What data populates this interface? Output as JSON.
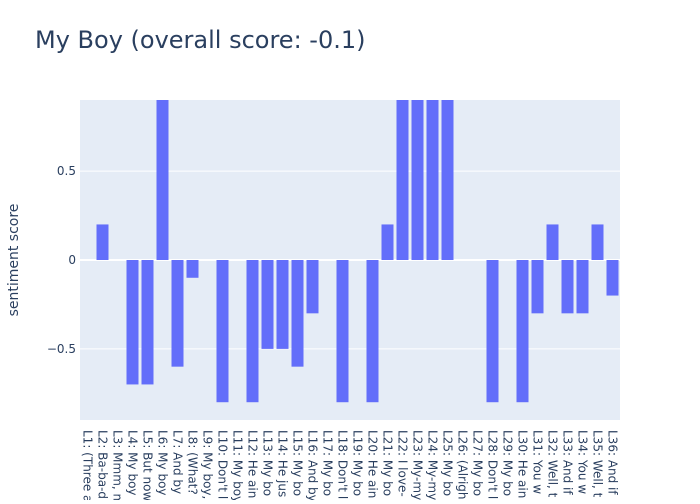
{
  "chart_data": {
    "type": "bar",
    "title": "My Boy (overall score: -0.1)",
    "xlabel": "",
    "ylabel": "sentiment score",
    "ylim": [
      -0.9,
      0.9
    ],
    "yticks": [
      {
        "value": 0.5,
        "label": "0.5"
      },
      {
        "value": 0,
        "label": "0"
      },
      {
        "value": -0.5,
        "label": "−0.5"
      }
    ],
    "grid": true,
    "bar_color": "#636efa",
    "plot_background": "#e5ecf6",
    "categories": [
      "L1: (Three a",
      "L2: Ba-ba-d",
      "L3: Mmm, m",
      "L4: My boy",
      "L5: But now",
      "L6: My boy",
      "L7: And by",
      "L8: (What?",
      "L9: My boy,",
      "L10: Don't l",
      "L11: My boy",
      "L12: He ain",
      "L13: My bo",
      "L14: He jus",
      "L15: My bo",
      "L16: And by",
      "L17: My bo",
      "L18: Don't l",
      "L19: My bo",
      "L20: He ain",
      "L21: My bo",
      "L22: I love-",
      "L23: My-my",
      "L24: My-my",
      "L25: My bo",
      "L26: (Alrigh",
      "L27: My bo",
      "L28: Don't l",
      "L29: My bo",
      "L30: He ain",
      "L31: You w",
      "L32: Well, t",
      "L33: And if",
      "L34: You w",
      "L35: Well, t",
      "L36: And if"
    ],
    "values": [
      0,
      0.2,
      0,
      -0.7,
      -0.7,
      0.9,
      -0.6,
      -0.1,
      0,
      -0.8,
      0,
      -0.8,
      -0.5,
      -0.5,
      -0.6,
      -0.3,
      0,
      -0.8,
      0,
      -0.8,
      0.2,
      0.9,
      0.9,
      0.9,
      0.9,
      0,
      0,
      -0.8,
      0,
      -0.8,
      -0.3,
      0.2,
      -0.3,
      -0.3,
      0.2,
      -0.2
    ]
  }
}
